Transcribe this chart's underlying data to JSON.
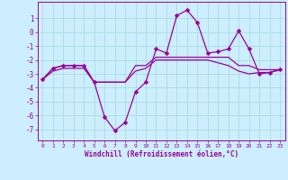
{
  "xlabel": "Windchill (Refroidissement éolien,°C)",
  "background_color": "#cceeff",
  "grid_color": "#aadddd",
  "line_color": "#990099",
  "x_hours": [
    0,
    1,
    2,
    3,
    4,
    5,
    6,
    7,
    8,
    9,
    10,
    11,
    12,
    13,
    14,
    15,
    16,
    17,
    18,
    19,
    20,
    21,
    22,
    23
  ],
  "line1": [
    -3.4,
    -2.6,
    -2.4,
    -2.4,
    -2.4,
    -3.6,
    -6.1,
    -7.1,
    -6.5,
    -4.3,
    -3.6,
    -1.2,
    -1.5,
    1.2,
    1.6,
    0.7,
    -1.5,
    -1.4,
    -1.2,
    0.1,
    -1.2,
    -3.0,
    -2.9,
    -2.7
  ],
  "line2": [
    -3.4,
    -2.6,
    -2.4,
    -2.4,
    -2.4,
    -3.6,
    -3.6,
    -3.6,
    -3.6,
    -2.4,
    -2.4,
    -1.8,
    -1.8,
    -1.8,
    -1.8,
    -1.8,
    -1.8,
    -1.8,
    -1.8,
    -2.4,
    -2.4,
    -2.7,
    -2.7,
    -2.7
  ],
  "line3": [
    -3.4,
    -2.8,
    -2.6,
    -2.6,
    -2.6,
    -3.6,
    -3.6,
    -3.6,
    -3.6,
    -2.8,
    -2.6,
    -2.0,
    -2.0,
    -2.0,
    -2.0,
    -2.0,
    -2.0,
    -2.2,
    -2.4,
    -2.8,
    -3.0,
    -2.9,
    -2.9,
    -2.7
  ],
  "ylim": [
    -7.8,
    2.2
  ],
  "yticks": [
    1,
    0,
    -1,
    -2,
    -3,
    -4,
    -5,
    -6,
    -7
  ],
  "xticks": [
    0,
    1,
    2,
    3,
    4,
    5,
    6,
    7,
    8,
    9,
    10,
    11,
    12,
    13,
    14,
    15,
    16,
    17,
    18,
    19,
    20,
    21,
    22,
    23
  ],
  "marker": "D",
  "markersize": 2.5,
  "linewidth": 0.9
}
